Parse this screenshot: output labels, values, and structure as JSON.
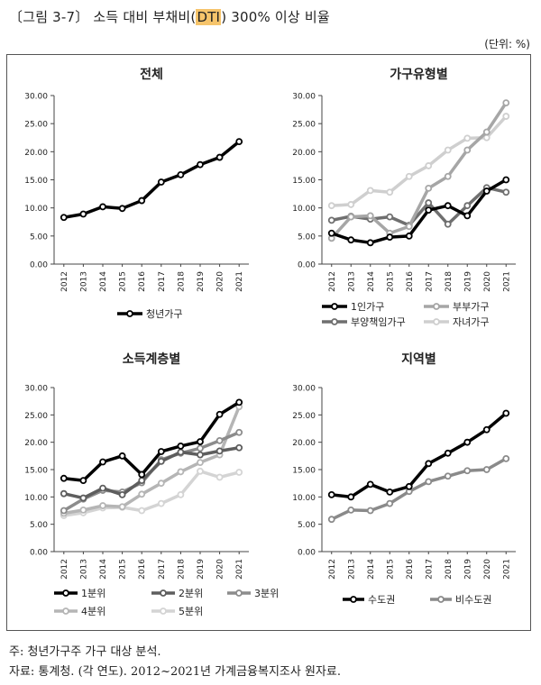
{
  "figure": {
    "title_pre": "〔그림 3-7〕 소득 대비 부채비(",
    "title_hl": "DTI",
    "title_post": ") 300% 이상 비율",
    "unit": "(단위: %)",
    "note": "주: 청년가구주 가구 대상 분석.",
    "source": "자료: 통계청. (각 연도). 2012~2021년 가계금융복지조사 원자료."
  },
  "chart_data": [
    {
      "type": "line",
      "title": "전체",
      "x": [
        "2012",
        "2013",
        "2014",
        "2015",
        "2016",
        "2017",
        "2018",
        "2019",
        "2020",
        "2021"
      ],
      "ylim": [
        0,
        30
      ],
      "yticks": [
        "0.00",
        "5.00",
        "10.00",
        "15.00",
        "20.00",
        "25.00",
        "30.00"
      ],
      "series": [
        {
          "name": "청년가구",
          "color": "#000000",
          "values": [
            8.3,
            8.9,
            10.2,
            9.9,
            11.3,
            14.6,
            15.9,
            17.7,
            19.0,
            21.8
          ]
        }
      ]
    },
    {
      "type": "line",
      "title": "가구유형별",
      "x": [
        "2012",
        "2013",
        "2014",
        "2015",
        "2016",
        "2017",
        "2018",
        "2019",
        "2020",
        "2021"
      ],
      "ylim": [
        0,
        30
      ],
      "yticks": [
        "0.00",
        "5.00",
        "10.00",
        "15.00",
        "20.00",
        "25.00",
        "30.00"
      ],
      "series": [
        {
          "name": "1인가구",
          "color": "#000000",
          "values": [
            5.5,
            4.3,
            3.8,
            4.8,
            5.0,
            9.6,
            10.4,
            8.6,
            13.0,
            15.0
          ]
        },
        {
          "name": "부부가구",
          "color": "#a6a6a6",
          "values": [
            4.6,
            8.4,
            8.6,
            5.5,
            6.7,
            13.5,
            15.6,
            20.3,
            23.5,
            28.7
          ]
        },
        {
          "name": "부양책임가구",
          "color": "#6f6f6f",
          "values": [
            7.8,
            8.5,
            8.0,
            8.4,
            6.9,
            10.9,
            7.1,
            10.4,
            13.6,
            12.8
          ]
        },
        {
          "name": "자녀가구",
          "color": "#cfcfcf",
          "values": [
            10.4,
            10.6,
            13.1,
            12.8,
            15.6,
            17.5,
            20.3,
            22.4,
            22.5,
            26.3
          ]
        }
      ]
    },
    {
      "type": "line",
      "title": "소득계층별",
      "x": [
        "2012",
        "2013",
        "2014",
        "2015",
        "2016",
        "2017",
        "2018",
        "2019",
        "2020",
        "2021"
      ],
      "ylim": [
        0,
        30
      ],
      "yticks": [
        "0.00",
        "5.00",
        "10.00",
        "15.00",
        "20.00",
        "25.00",
        "30.00"
      ],
      "series": [
        {
          "name": "1분위",
          "color": "#000000",
          "values": [
            13.4,
            13.0,
            16.4,
            17.5,
            14.1,
            18.3,
            19.3,
            20.1,
            25.1,
            27.3
          ]
        },
        {
          "name": "2분위",
          "color": "#5e5e5e",
          "values": [
            10.6,
            9.8,
            11.6,
            10.4,
            13.0,
            16.5,
            18.2,
            17.7,
            18.4,
            19.0
          ]
        },
        {
          "name": "3분위",
          "color": "#8c8c8c",
          "values": [
            7.5,
            9.6,
            11.2,
            10.9,
            12.6,
            16.8,
            18.0,
            18.9,
            20.3,
            21.8
          ]
        },
        {
          "name": "4분위",
          "color": "#b5b5b5",
          "values": [
            7.0,
            7.6,
            8.4,
            8.2,
            10.5,
            12.5,
            14.6,
            16.3,
            17.7,
            26.5
          ]
        },
        {
          "name": "5분위",
          "color": "#d4d4d4",
          "values": [
            6.6,
            7.1,
            8.0,
            8.1,
            7.5,
            8.8,
            10.4,
            14.7,
            13.6,
            14.5
          ]
        }
      ]
    },
    {
      "type": "line",
      "title": "지역별",
      "x": [
        "2012",
        "2013",
        "2014",
        "2015",
        "2016",
        "2017",
        "2018",
        "2019",
        "2020",
        "2021"
      ],
      "ylim": [
        0,
        30
      ],
      "yticks": [
        "0.00",
        "5.00",
        "10.00",
        "15.00",
        "20.00",
        "25.00",
        "30.00"
      ],
      "series": [
        {
          "name": "수도권",
          "color": "#000000",
          "values": [
            10.4,
            10.0,
            12.3,
            10.9,
            11.9,
            16.1,
            18.0,
            20.0,
            22.3,
            25.3
          ]
        },
        {
          "name": "비수도권",
          "color": "#8a8a8a",
          "values": [
            5.9,
            7.6,
            7.5,
            8.8,
            11.0,
            12.8,
            13.8,
            14.8,
            15.0,
            17.0
          ]
        }
      ]
    }
  ]
}
